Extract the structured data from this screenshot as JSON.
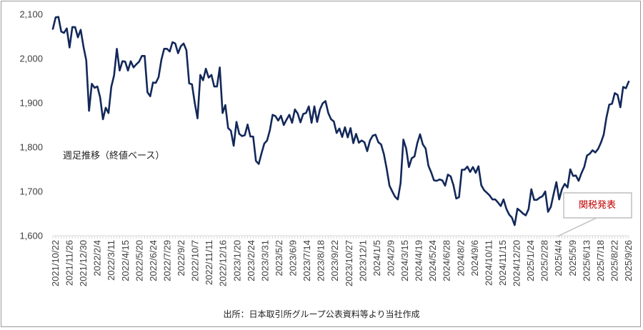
{
  "chart_data": {
    "type": "line",
    "annotation_series": "週足推移（終値ベース）",
    "source": "出所：日本取引所グループ公表資料等より当社作成",
    "callout": "関税発表",
    "ylim": [
      1600,
      2100
    ],
    "yticks": [
      1600,
      1700,
      1800,
      1900,
      2000,
      2100
    ],
    "ytick_labels": [
      "1,600",
      "1,700",
      "1,800",
      "1,900",
      "2,000",
      "2,100"
    ],
    "xtick_labels": [
      "2021/10/22",
      "2021/11/26",
      "2021/12/30",
      "2022/2/4",
      "2022/3/11",
      "2022/4/15",
      "2022/5/20",
      "2022/6/24",
      "2022/7/29",
      "2022/9/2",
      "2022/10/7",
      "2022/11/11",
      "2022/12/16",
      "2023/1/20",
      "2023/2/24",
      "2023/3/31",
      "2023/5/2",
      "2023/6/9",
      "2023/7/14",
      "2023/8/18",
      "2023/9/22",
      "2023/10/27",
      "2023/12/1",
      "2024/1/5",
      "2024/2/9",
      "2024/3/15",
      "2024/4/19",
      "2024/5/24",
      "2024/6/28",
      "2024/8/2",
      "2024/9/6",
      "2024/10/11",
      "2024/11/15",
      "2024/12/20",
      "2025/1/24",
      "2025/2/28",
      "2025/4/4",
      "2025/5/9",
      "2025/6/13",
      "2025/7/18",
      "2025/8/22",
      "2025/9/26"
    ],
    "callout_date": "2025/4/4",
    "grid": false,
    "legend": "none",
    "line_color": "#13285a",
    "series": [
      {
        "values": [
          2067,
          2093,
          2094,
          2061,
          2058,
          2068,
          2025,
          2071,
          2071,
          2048,
          2065,
          2027,
          1996,
          1882,
          1943,
          1934,
          1937,
          1912,
          1863,
          1889,
          1877,
          1936,
          1962,
          2022,
          1973,
          1994,
          1993,
          1973,
          1994,
          1980,
          1987,
          1993,
          2006,
          2006,
          1924,
          1915,
          1946,
          1945,
          1958,
          1997,
          2022,
          2022,
          2016,
          2037,
          2034,
          2012,
          2028,
          2034,
          2019,
          1944,
          1942,
          1900,
          1865,
          1963,
          1951,
          1977,
          1957,
          1963,
          1937,
          1937,
          1980,
          1877,
          1895,
          1843,
          1837,
          1803,
          1857,
          1830,
          1825,
          1827,
          1851,
          1824,
          1824,
          1769,
          1762,
          1786,
          1808,
          1815,
          1838,
          1873,
          1870,
          1860,
          1871,
          1850,
          1862,
          1873,
          1855,
          1885,
          1876,
          1856,
          1875,
          1877,
          1892,
          1855,
          1892,
          1857,
          1885,
          1899,
          1904,
          1877,
          1863,
          1858,
          1832,
          1842,
          1823,
          1845,
          1822,
          1843,
          1809,
          1830,
          1810,
          1815,
          1811,
          1791,
          1815,
          1826,
          1828,
          1811,
          1806,
          1784,
          1751,
          1713,
          1700,
          1688,
          1682,
          1719,
          1817,
          1797,
          1755,
          1775,
          1779,
          1809,
          1829,
          1806,
          1797,
          1758,
          1743,
          1725,
          1724,
          1727,
          1725,
          1713,
          1738,
          1734,
          1714,
          1684,
          1687,
          1749,
          1749,
          1756,
          1744,
          1755,
          1742,
          1757,
          1714,
          1703,
          1697,
          1691,
          1682,
          1682,
          1675,
          1667,
          1682,
          1661,
          1648,
          1641,
          1624,
          1661,
          1656,
          1650,
          1646,
          1660,
          1705,
          1681,
          1681,
          1686,
          1689,
          1700,
          1654,
          1665,
          1694,
          1721,
          1682,
          1705,
          1717,
          1709,
          1750,
          1735,
          1736,
          1724,
          1741,
          1755,
          1781,
          1785,
          1793,
          1788,
          1796,
          1810,
          1828,
          1867,
          1896,
          1898,
          1922,
          1918,
          1890,
          1936,
          1933,
          1948
        ]
      }
    ]
  }
}
